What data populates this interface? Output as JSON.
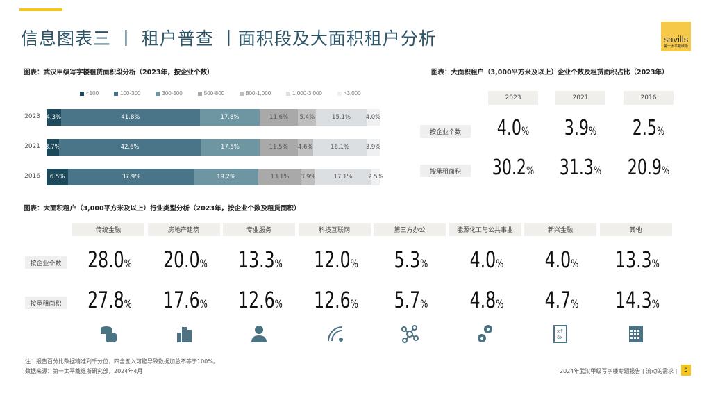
{
  "header": {
    "title": "信息图表三 丨 租户普查 丨面积段及大面积租户分析",
    "logo_text": "savills",
    "logo_sub": "第一太平戴维斯"
  },
  "chart_data": {
    "type": "bar",
    "stacked": true,
    "orientation": "horizontal",
    "title": "图表：武汉甲级写字楼租赁面积段分析（2023年，按企业个数）",
    "categories": [
      "2023",
      "2021",
      "2016"
    ],
    "legend_position": "top",
    "series": [
      {
        "name": "<100",
        "color": "#1d4a5b",
        "values": [
          4.3,
          3.7,
          6.5
        ]
      },
      {
        "name": "100-300",
        "color": "#4a7487",
        "values": [
          41.8,
          42.6,
          37.9
        ]
      },
      {
        "name": "300-500",
        "color": "#6d95a2",
        "values": [
          17.8,
          17.5,
          19.2
        ]
      },
      {
        "name": "500-800",
        "color": "#a9a9a9",
        "values": [
          11.6,
          11.5,
          13.1
        ]
      },
      {
        "name": "800-1,000",
        "color": "#bfbfbf",
        "values": [
          5.4,
          4.6,
          3.9
        ]
      },
      {
        "name": "1,000-3,000",
        "color": "#dcdfe2",
        "values": [
          15.1,
          16.1,
          17.1
        ]
      },
      {
        "name": ">3,000",
        "color": "#eef0f2",
        "values": [
          4.0,
          3.9,
          2.5
        ]
      }
    ],
    "unit": "%",
    "xlim": [
      0,
      100
    ]
  },
  "share": {
    "title": "图表：大面积租户（3,000平方米及以上）企业个数及租赁面积占比（2023年）",
    "years": [
      "2023",
      "2021",
      "2016"
    ],
    "rows": [
      {
        "label": "按企业个数",
        "values": [
          "4.0",
          "3.9",
          "2.5"
        ]
      },
      {
        "label": "按承租面积",
        "values": [
          "30.2",
          "31.3",
          "20.9"
        ]
      }
    ],
    "pct": "%"
  },
  "industry": {
    "title": "图表：大面积租户（3,000平方米及以上）行业类型分析（2023年，按企业个数及租赁面积）",
    "columns": [
      "传统金融",
      "房地产建筑",
      "专业服务",
      "科技互联网",
      "第三方办公",
      "能源化工与公共事业",
      "新兴金融",
      "其他"
    ],
    "icons": [
      "coins-icon",
      "buildings-icon",
      "consultant-icon",
      "wifi-icon",
      "network-icon",
      "gears-icon",
      "strategy-board-icon",
      "calendar-grid-icon"
    ],
    "rows": [
      {
        "label": "按企业个数",
        "values": [
          "28.0",
          "20.0",
          "13.3",
          "12.0",
          "5.3",
          "4.0",
          "4.0",
          "13.3"
        ]
      },
      {
        "label": "按承租面积",
        "values": [
          "27.8",
          "17.6",
          "12.6",
          "12.6",
          "5.7",
          "4.8",
          "4.7",
          "14.3"
        ]
      }
    ],
    "pct": "%",
    "icon_color": "#4b7383"
  },
  "footer": {
    "note": "注：报告百分比数据精准到千分位，四舍五入可能导致数据加总不等于100%。",
    "source": "数据来源：第一太平戴维斯研究部，2024年4月",
    "report": "2024年武汉甲级写字楼专题报告 | 流动的需求 |",
    "page": "5"
  }
}
